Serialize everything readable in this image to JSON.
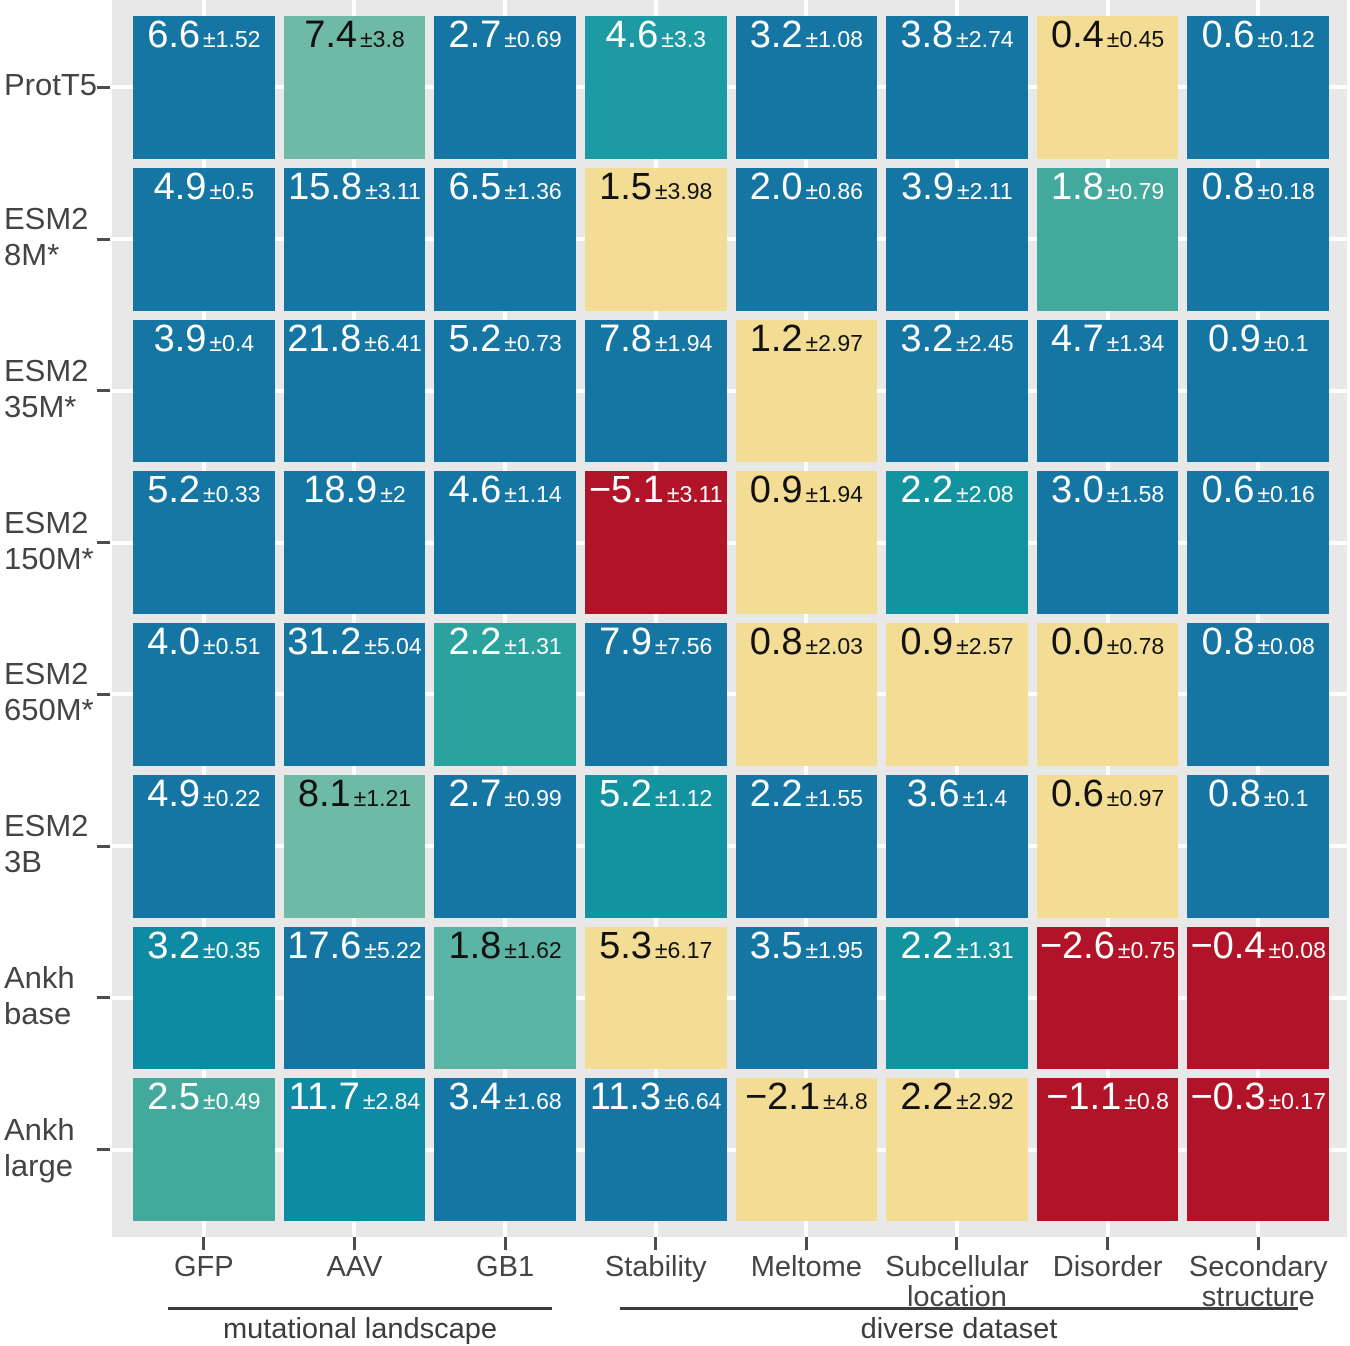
{
  "figure": {
    "background": "#ffffff",
    "panel_background": "#e8e8e8",
    "gridline_color": "#ffffff",
    "tick_color": "#4d4d4d",
    "axis_label_color": "#444444",
    "group_annotation_color": "#3c3c3c"
  },
  "palette": {
    "blue": "#1576a3",
    "teal": "#1d9aa3",
    "teal2": "#13939f",
    "teal3": "#2ba29e",
    "teal4": "#0e8aa2",
    "green": "#6ebaa6",
    "green2": "#43a99d",
    "green3": "#5cb4a4",
    "yellow": "#f3dc94",
    "red": "#b11428"
  },
  "chart_data": {
    "type": "heatmap",
    "title": "",
    "xlabel": "",
    "ylabel": "",
    "grid": true,
    "legend": false,
    "value_format": "value ± error",
    "rows": [
      {
        "label": "ProtT5",
        "lines": [
          "ProtT5"
        ]
      },
      {
        "label": "ESM2 8M*",
        "lines": [
          "ESM2",
          "8M*"
        ]
      },
      {
        "label": "ESM2 35M*",
        "lines": [
          "ESM2",
          "35M*"
        ]
      },
      {
        "label": "ESM2 150M*",
        "lines": [
          "ESM2",
          "150M*"
        ]
      },
      {
        "label": "ESM2 650M*",
        "lines": [
          "ESM2",
          "650M*"
        ]
      },
      {
        "label": "ESM2 3B",
        "lines": [
          "ESM2",
          "3B"
        ]
      },
      {
        "label": "Ankh base",
        "lines": [
          "Ankh",
          "base"
        ]
      },
      {
        "label": "Ankh large",
        "lines": [
          "Ankh",
          "large"
        ]
      }
    ],
    "columns": [
      {
        "label": "GFP",
        "lines": [
          "GFP"
        ]
      },
      {
        "label": "AAV",
        "lines": [
          "AAV"
        ]
      },
      {
        "label": "GB1",
        "lines": [
          "GB1"
        ]
      },
      {
        "label": "Stability",
        "lines": [
          "Stability"
        ]
      },
      {
        "label": "Meltome",
        "lines": [
          "Meltome"
        ]
      },
      {
        "label": "Subcellular location",
        "lines": [
          "Subcellular",
          "location"
        ]
      },
      {
        "label": "Disorder",
        "lines": [
          "Disorder"
        ]
      },
      {
        "label": "Secondary structure",
        "lines": [
          "Secondary",
          "structure"
        ]
      }
    ],
    "column_groups": [
      {
        "label": "mutational landscape",
        "start": 0,
        "end": 2
      },
      {
        "label": "diverse dataset",
        "start": 3,
        "end": 7
      }
    ],
    "cells": [
      [
        {
          "value": 6.6,
          "error": 1.52,
          "color": "blue",
          "text": "light"
        },
        {
          "value": 7.4,
          "error": 3.8,
          "color": "green",
          "text": "dark"
        },
        {
          "value": 2.7,
          "error": 0.69,
          "color": "blue",
          "text": "light"
        },
        {
          "value": 4.6,
          "error": 3.3,
          "color": "teal",
          "text": "light"
        },
        {
          "value": 3.2,
          "error": 1.08,
          "color": "blue",
          "text": "light"
        },
        {
          "value": 3.8,
          "error": 2.74,
          "color": "blue",
          "text": "light"
        },
        {
          "value": 0.4,
          "error": 0.45,
          "color": "yellow",
          "text": "dark"
        },
        {
          "value": 0.6,
          "error": 0.12,
          "color": "blue",
          "text": "light"
        }
      ],
      [
        {
          "value": 4.9,
          "error": 0.5,
          "color": "blue",
          "text": "light"
        },
        {
          "value": 15.8,
          "error": 3.11,
          "color": "blue",
          "text": "light"
        },
        {
          "value": 6.5,
          "error": 1.36,
          "color": "blue",
          "text": "light"
        },
        {
          "value": 1.5,
          "error": 3.98,
          "color": "yellow",
          "text": "dark"
        },
        {
          "value": 2.0,
          "error": 0.86,
          "color": "blue",
          "text": "light"
        },
        {
          "value": 3.9,
          "error": 2.11,
          "color": "blue",
          "text": "light"
        },
        {
          "value": 1.8,
          "error": 0.79,
          "color": "green2",
          "text": "light"
        },
        {
          "value": 0.8,
          "error": 0.18,
          "color": "blue",
          "text": "light"
        }
      ],
      [
        {
          "value": 3.9,
          "error": 0.4,
          "color": "blue",
          "text": "light"
        },
        {
          "value": 21.8,
          "error": 6.41,
          "color": "blue",
          "text": "light"
        },
        {
          "value": 5.2,
          "error": 0.73,
          "color": "blue",
          "text": "light"
        },
        {
          "value": 7.8,
          "error": 1.94,
          "color": "blue",
          "text": "light"
        },
        {
          "value": 1.2,
          "error": 2.97,
          "color": "yellow",
          "text": "dark"
        },
        {
          "value": 3.2,
          "error": 2.45,
          "color": "blue",
          "text": "light"
        },
        {
          "value": 4.7,
          "error": 1.34,
          "color": "blue",
          "text": "light"
        },
        {
          "value": 0.9,
          "error": 0.1,
          "color": "blue",
          "text": "light"
        }
      ],
      [
        {
          "value": 5.2,
          "error": 0.33,
          "color": "blue",
          "text": "light"
        },
        {
          "value": 18.9,
          "error": 2,
          "color": "blue",
          "text": "light"
        },
        {
          "value": 4.6,
          "error": 1.14,
          "color": "blue",
          "text": "light"
        },
        {
          "value": -5.1,
          "error": 3.11,
          "color": "red",
          "text": "light"
        },
        {
          "value": 0.9,
          "error": 1.94,
          "color": "yellow",
          "text": "dark"
        },
        {
          "value": 2.2,
          "error": 2.08,
          "color": "teal2",
          "text": "light"
        },
        {
          "value": 3.0,
          "error": 1.58,
          "color": "blue",
          "text": "light"
        },
        {
          "value": 0.6,
          "error": 0.16,
          "color": "blue",
          "text": "light"
        }
      ],
      [
        {
          "value": 4.0,
          "error": 0.51,
          "color": "blue",
          "text": "light"
        },
        {
          "value": 31.2,
          "error": 5.04,
          "color": "blue",
          "text": "light"
        },
        {
          "value": 2.2,
          "error": 1.31,
          "color": "teal3",
          "text": "light"
        },
        {
          "value": 7.9,
          "error": 7.56,
          "color": "blue",
          "text": "light"
        },
        {
          "value": 0.8,
          "error": 2.03,
          "color": "yellow",
          "text": "dark"
        },
        {
          "value": 0.9,
          "error": 2.57,
          "color": "yellow",
          "text": "dark"
        },
        {
          "value": 0.0,
          "error": 0.78,
          "color": "yellow",
          "text": "dark"
        },
        {
          "value": 0.8,
          "error": 0.08,
          "color": "blue",
          "text": "light"
        }
      ],
      [
        {
          "value": 4.9,
          "error": 0.22,
          "color": "blue",
          "text": "light"
        },
        {
          "value": 8.1,
          "error": 1.21,
          "color": "green",
          "text": "dark"
        },
        {
          "value": 2.7,
          "error": 0.99,
          "color": "blue",
          "text": "light"
        },
        {
          "value": 5.2,
          "error": 1.12,
          "color": "teal2",
          "text": "light"
        },
        {
          "value": 2.2,
          "error": 1.55,
          "color": "blue",
          "text": "light"
        },
        {
          "value": 3.6,
          "error": 1.4,
          "color": "blue",
          "text": "light"
        },
        {
          "value": 0.6,
          "error": 0.97,
          "color": "yellow",
          "text": "dark"
        },
        {
          "value": 0.8,
          "error": 0.1,
          "color": "blue",
          "text": "light"
        }
      ],
      [
        {
          "value": 3.2,
          "error": 0.35,
          "color": "teal4",
          "text": "light"
        },
        {
          "value": 17.6,
          "error": 5.22,
          "color": "blue",
          "text": "light"
        },
        {
          "value": 1.8,
          "error": 1.62,
          "color": "green3",
          "text": "dark"
        },
        {
          "value": 5.3,
          "error": 6.17,
          "color": "yellow",
          "text": "dark"
        },
        {
          "value": 3.5,
          "error": 1.95,
          "color": "blue",
          "text": "light"
        },
        {
          "value": 2.2,
          "error": 1.31,
          "color": "teal2",
          "text": "light"
        },
        {
          "value": -2.6,
          "error": 0.75,
          "color": "red",
          "text": "light"
        },
        {
          "value": -0.4,
          "error": 0.08,
          "color": "red",
          "text": "light"
        }
      ],
      [
        {
          "value": 2.5,
          "error": 0.49,
          "color": "green2",
          "text": "light"
        },
        {
          "value": 11.7,
          "error": 2.84,
          "color": "teal4",
          "text": "light"
        },
        {
          "value": 3.4,
          "error": 1.68,
          "color": "blue",
          "text": "light"
        },
        {
          "value": 11.3,
          "error": 6.64,
          "color": "blue",
          "text": "light"
        },
        {
          "value": -2.1,
          "error": 4.8,
          "color": "yellow",
          "text": "dark"
        },
        {
          "value": 2.2,
          "error": 2.92,
          "color": "yellow",
          "text": "dark"
        },
        {
          "value": -1.1,
          "error": 0.8,
          "color": "red",
          "text": "light"
        },
        {
          "value": -0.3,
          "error": 0.17,
          "color": "red",
          "text": "light"
        }
      ]
    ]
  }
}
